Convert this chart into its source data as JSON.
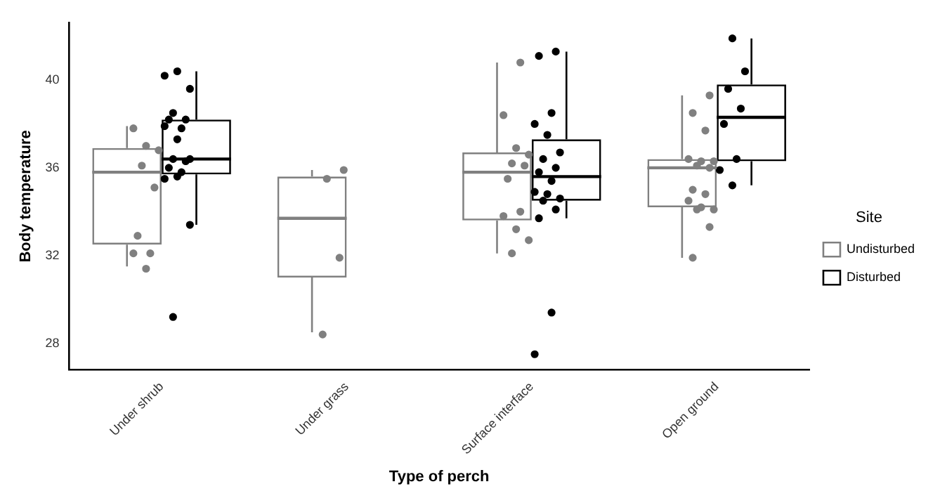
{
  "chart_data": {
    "type": "box",
    "xlabel": "Type of perch",
    "ylabel": "Body temperature",
    "legend_title": "Site",
    "legend": "right",
    "grid": false,
    "marker": "circle",
    "categories": [
      "Under shrub",
      "Under grass",
      "Surface interface",
      "Open ground"
    ],
    "ylim": [
      26.8,
      42.6
    ],
    "yticks": [
      28,
      32,
      36,
      40
    ],
    "series": [
      {
        "name": "Undisturbed",
        "color": "#808080",
        "boxes": [
          {
            "low": 31.5,
            "q1": 32.5,
            "median": 35.8,
            "q3": 36.9,
            "high": 37.9
          },
          {
            "low": 28.5,
            "q1": 31.0,
            "median": 33.7,
            "q3": 35.6,
            "high": 35.9
          },
          {
            "low": 32.1,
            "q1": 33.6,
            "median": 35.8,
            "q3": 36.7,
            "high": 40.8
          },
          {
            "low": 31.9,
            "q1": 34.2,
            "median": 36.0,
            "q3": 36.4,
            "high": 39.3
          }
        ]
      },
      {
        "name": "Disturbed",
        "color": "#000000",
        "boxes": [
          {
            "low": 33.4,
            "q1": 35.7,
            "median": 36.4,
            "q3": 38.2,
            "high": 40.4
          },
          null,
          {
            "low": 33.7,
            "q1": 34.5,
            "median": 35.6,
            "q3": 37.3,
            "high": 41.3
          },
          {
            "low": 35.2,
            "q1": 36.3,
            "median": 38.3,
            "q3": 39.8,
            "high": 41.9
          }
        ]
      },
      {
        "type": "scatter",
        "color": "#808080",
        "x": [
          "Under shrub",
          "Under shrub",
          "Under shrub",
          "Under shrub",
          "Under shrub",
          "Under shrub",
          "Under shrub",
          "Under shrub",
          "Under shrub",
          "Under grass",
          "Under grass",
          "Under grass",
          "Under grass",
          "Surface interface",
          "Surface interface",
          "Surface interface",
          "Surface interface",
          "Surface interface",
          "Surface interface",
          "Surface interface",
          "Surface interface",
          "Surface interface",
          "Surface interface",
          "Surface interface",
          "Surface interface",
          "Open ground",
          "Open ground",
          "Open ground",
          "Open ground",
          "Open ground",
          "Open ground",
          "Open ground",
          "Open ground",
          "Open ground",
          "Open ground",
          "Open ground",
          "Open ground",
          "Open ground",
          "Open ground",
          "Open ground",
          "Open ground"
        ],
        "values": [
          37.8,
          37.0,
          36.8,
          36.1,
          35.1,
          32.9,
          32.1,
          32.1,
          31.4,
          35.9,
          35.5,
          31.9,
          28.4,
          40.8,
          38.4,
          36.9,
          36.6,
          36.2,
          36.1,
          35.5,
          34.0,
          33.8,
          33.2,
          32.7,
          32.1,
          39.3,
          38.5,
          37.7,
          36.4,
          36.3,
          36.3,
          36.1,
          36.0,
          35.0,
          34.8,
          34.5,
          34.2,
          34.1,
          34.1,
          33.3,
          31.9
        ]
      },
      {
        "type": "scatter",
        "color": "#000000",
        "x": [
          "Under shrub",
          "Under shrub",
          "Under shrub",
          "Under shrub",
          "Under shrub",
          "Under shrub",
          "Under shrub",
          "Under shrub",
          "Under shrub",
          "Under shrub",
          "Under shrub",
          "Under shrub",
          "Under shrub",
          "Under shrub",
          "Under shrub",
          "Under shrub",
          "Under shrub",
          "Under shrub",
          "Surface interface",
          "Surface interface",
          "Surface interface",
          "Surface interface",
          "Surface interface",
          "Surface interface",
          "Surface interface",
          "Surface interface",
          "Surface interface",
          "Surface interface",
          "Surface interface",
          "Surface interface",
          "Surface interface",
          "Surface interface",
          "Surface interface",
          "Surface interface",
          "Surface interface",
          "Surface interface",
          "Open ground",
          "Open ground",
          "Open ground",
          "Open ground",
          "Open ground",
          "Open ground",
          "Open ground",
          "Open ground"
        ],
        "values": [
          40.2,
          40.4,
          39.6,
          38.5,
          38.2,
          38.2,
          37.8,
          37.9,
          37.3,
          36.4,
          36.4,
          36.3,
          36.0,
          35.8,
          35.5,
          35.6,
          33.4,
          29.2,
          41.3,
          41.1,
          38.5,
          38.0,
          37.5,
          36.7,
          36.4,
          36.0,
          35.8,
          35.4,
          34.9,
          34.8,
          34.6,
          34.5,
          34.1,
          33.7,
          29.4,
          27.5,
          41.9,
          40.4,
          39.6,
          38.7,
          38.0,
          36.4,
          35.9,
          35.2
        ]
      }
    ]
  }
}
